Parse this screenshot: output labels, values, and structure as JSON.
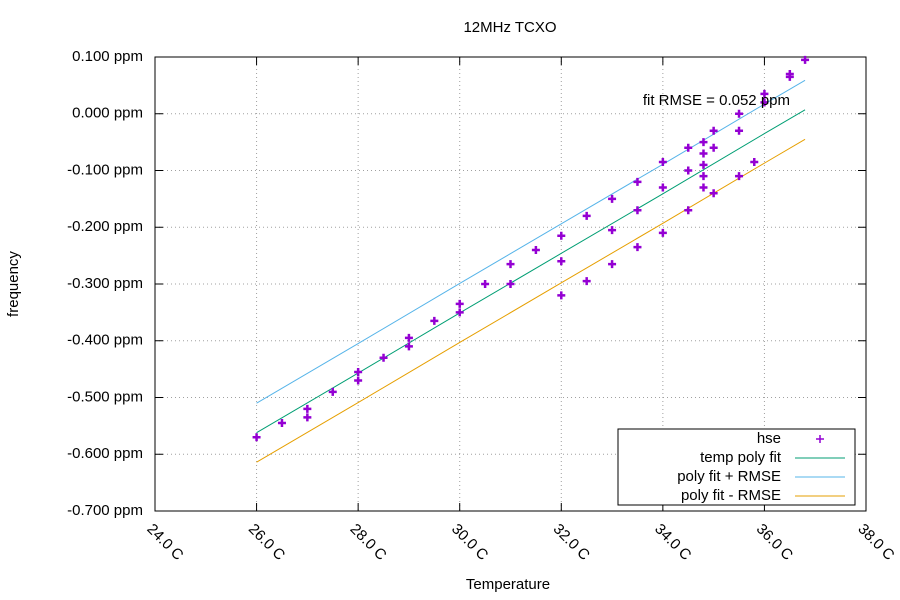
{
  "chart_data": {
    "type": "scatter",
    "title": "12MHz TCXO",
    "xlabel": "Temperature",
    "ylabel": "frequency",
    "annotation": "fit RMSE = 0.052 ppm",
    "xlim": [
      24,
      38
    ],
    "xticks": [
      {
        "value": 24,
        "label": "24.0 C"
      },
      {
        "value": 26,
        "label": "26.0 C"
      },
      {
        "value": 28,
        "label": "28.0 C"
      },
      {
        "value": 30,
        "label": "30.0 C"
      },
      {
        "value": 32,
        "label": "32.0 C"
      },
      {
        "value": 34,
        "label": "34.0 C"
      },
      {
        "value": 36,
        "label": "36.0 C"
      },
      {
        "value": 38,
        "label": "38.0 C"
      }
    ],
    "ylim": [
      -0.7,
      0.1
    ],
    "yticks": [
      {
        "value": -0.7,
        "label": "-0.700 ppm"
      },
      {
        "value": -0.6,
        "label": "-0.600 ppm"
      },
      {
        "value": -0.5,
        "label": "-0.500 ppm"
      },
      {
        "value": -0.4,
        "label": "-0.400 ppm"
      },
      {
        "value": -0.3,
        "label": "-0.300 ppm"
      },
      {
        "value": -0.2,
        "label": "-0.200 ppm"
      },
      {
        "value": -0.1,
        "label": "-0.100 ppm"
      },
      {
        "value": 0,
        "label": "0.000 ppm"
      },
      {
        "value": 0.1,
        "label": "0.100 ppm"
      }
    ],
    "grid": true,
    "legend": "lower right",
    "series": [
      {
        "name": "hse",
        "color": "#9400d3",
        "style": "points",
        "x": [
          26.0,
          26.5,
          27.0,
          27.5,
          28.0,
          28.5,
          29.0,
          29.5,
          30.0,
          30.5,
          31.0,
          31.5,
          32.0,
          32.5,
          33.0,
          33.5,
          34.0,
          34.5,
          35.0,
          35.5,
          36.0,
          36.5,
          36.8,
          27.0,
          28.0,
          29.0,
          30.0,
          31.0,
          32.0,
          33.0,
          33.5,
          34.0,
          34.5,
          35.0,
          35.5,
          36.0,
          36.5,
          32.0,
          32.5,
          33.0,
          33.5,
          34.0,
          34.5,
          35.0,
          35.5,
          35.8,
          34.8,
          34.8,
          34.8,
          34.8,
          34.8
        ],
        "values": [
          -0.57,
          -0.545,
          -0.52,
          -0.49,
          -0.455,
          -0.43,
          -0.395,
          -0.365,
          -0.335,
          -0.3,
          -0.265,
          -0.24,
          -0.215,
          -0.18,
          -0.15,
          -0.12,
          -0.085,
          -0.06,
          -0.03,
          0.0,
          0.035,
          0.07,
          0.095,
          -0.535,
          -0.47,
          -0.41,
          -0.35,
          -0.3,
          -0.26,
          -0.205,
          -0.17,
          -0.13,
          -0.1,
          -0.06,
          -0.03,
          0.02,
          0.065,
          -0.32,
          -0.295,
          -0.265,
          -0.235,
          -0.21,
          -0.17,
          -0.14,
          -0.11,
          -0.085,
          -0.05,
          -0.07,
          -0.09,
          -0.11,
          -0.13
        ]
      },
      {
        "name": "temp poly fit",
        "color": "#009e73",
        "style": "line",
        "x": [
          26,
          28,
          30,
          32,
          34,
          36,
          36.8
        ],
        "values": [
          -0.562,
          -0.457,
          -0.351,
          -0.246,
          -0.141,
          -0.035,
          0.007
        ]
      },
      {
        "name": "poly fit + RMSE",
        "color": "#56b4e9",
        "style": "line",
        "x": [
          26,
          28,
          30,
          32,
          34,
          36,
          36.8
        ],
        "values": [
          -0.51,
          -0.405,
          -0.299,
          -0.194,
          -0.089,
          0.017,
          0.059
        ]
      },
      {
        "name": "poly fit - RMSE",
        "color": "#e69f00",
        "style": "line",
        "x": [
          26,
          28,
          30,
          32,
          34,
          36,
          36.8
        ],
        "values": [
          -0.614,
          -0.509,
          -0.403,
          -0.298,
          -0.193,
          -0.087,
          -0.045
        ]
      }
    ]
  }
}
